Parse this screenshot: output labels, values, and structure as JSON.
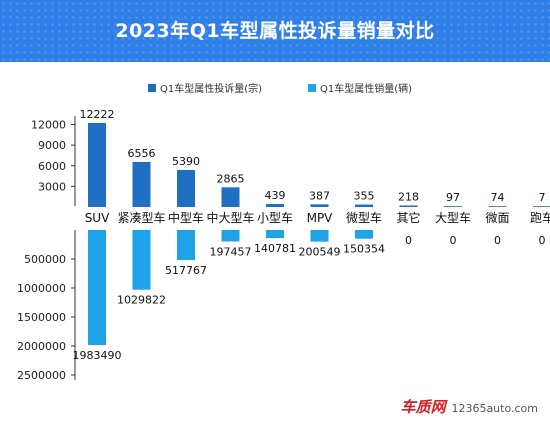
{
  "header": {
    "title": "2023年Q1车型属性投诉量销量对比"
  },
  "watermark": {
    "logo_text": "车质网",
    "url": "12365auto.com"
  },
  "colors": {
    "header": "#2f7fe8",
    "complaints": "#1f6fc3",
    "sales": "#1fa3e8",
    "axis": "#333333"
  },
  "chart_data": {
    "type": "bar",
    "title": "2023年Q1车型属性投诉量销量对比",
    "categories": [
      "SUV",
      "紧凑型车",
      "中型车",
      "中大型车",
      "小型车",
      "MPV",
      "微型车",
      "其它",
      "大型车",
      "微面",
      "跑车"
    ],
    "series": [
      {
        "name": "Q1车型属性投诉量(宗)",
        "values": [
          12222,
          6556,
          5390,
          2865,
          439,
          387,
          355,
          218,
          97,
          74,
          7
        ]
      },
      {
        "name": "Q1车型属性销量(辆)",
        "values": [
          1983490,
          1029822,
          517767,
          197457,
          140781,
          200549,
          150354,
          0,
          0,
          0,
          0
        ]
      }
    ],
    "upper_axis": {
      "ticks": [
        "3000",
        "6000",
        "9000",
        "12000"
      ],
      "tick_values": [
        3000,
        6000,
        9000,
        12000
      ],
      "range": [
        0,
        12222
      ]
    },
    "lower_axis": {
      "ticks": [
        "500000",
        "1000000",
        "1500000",
        "2000000",
        "2500000"
      ],
      "tick_values": [
        500000,
        1000000,
        1500000,
        2000000,
        2500000
      ],
      "range": [
        0,
        2500000
      ]
    },
    "legend_position": "top",
    "grid": false
  }
}
